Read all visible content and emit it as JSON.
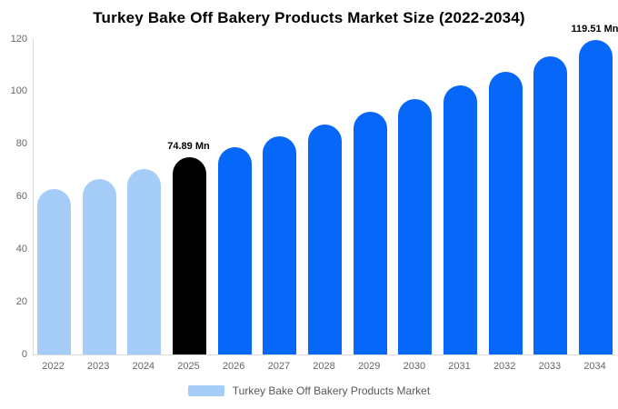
{
  "title": "Turkey Bake Off Bakery Products Market Size (2022-2034)",
  "legend": {
    "label": "Turkey Bake Off Bakery Products Market"
  },
  "palette": {
    "historical": "#a5cdf8",
    "highlight": "#000000",
    "forecast": "#0667f9",
    "axis_line": "#d9d9d9",
    "tick_text": "#666666",
    "legend_text": "#595959"
  },
  "chart_data": {
    "type": "bar",
    "title": "Turkey Bake Off Bakery Products Market Size (2022-2034)",
    "categories": [
      "2022",
      "2023",
      "2024",
      "2025",
      "2026",
      "2027",
      "2028",
      "2029",
      "2030",
      "2031",
      "2032",
      "2033",
      "2034"
    ],
    "values": [
      63.0,
      66.6,
      70.5,
      74.89,
      78.9,
      83.1,
      87.5,
      92.2,
      97.1,
      102.2,
      107.7,
      113.4,
      119.51
    ],
    "bar_roles": [
      "historical",
      "historical",
      "historical",
      "highlight",
      "forecast",
      "forecast",
      "forecast",
      "forecast",
      "forecast",
      "forecast",
      "forecast",
      "forecast",
      "forecast"
    ],
    "annotations": [
      {
        "category": "2025",
        "text": "74.89 Mn"
      },
      {
        "category": "2034",
        "text": "119.51 Mn"
      }
    ],
    "xlabel": "",
    "ylabel": "",
    "ylim": [
      0,
      120
    ],
    "yticks": [
      0,
      20,
      40,
      60,
      80,
      100,
      120
    ],
    "grid": false,
    "legend_position": "bottom",
    "legend_entries": [
      "Turkey Bake Off Bakery Products Market"
    ],
    "unit": "Mn"
  }
}
